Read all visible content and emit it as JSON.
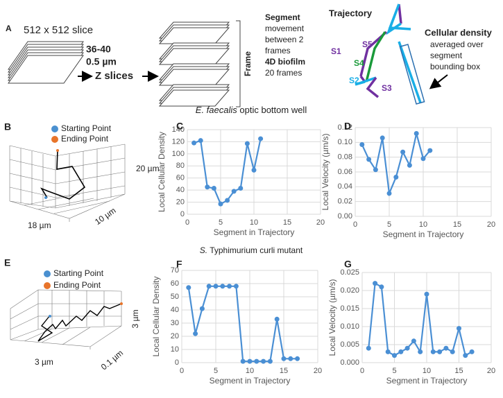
{
  "panel_a": {
    "letter": "A",
    "slice": "512 x 512 slice",
    "count": "36-40",
    "thickness": "0.5 µm",
    "z_slices": "Z slices",
    "frame": "Frame",
    "segment_title": "Segment",
    "segment_desc": [
      "movement",
      "between 2",
      "frames"
    ],
    "biofilm": "4D biofilm",
    "frames": "20 frames",
    "trajectory": "Trajectory",
    "segments": [
      "S1",
      "S2",
      "S3",
      "S4",
      "S5"
    ],
    "density_title": "Cellular density",
    "density_desc": [
      "averaged over",
      "segment",
      "bounding box"
    ]
  },
  "section_1": {
    "species": "E. faecalis",
    "rest": "optic bottom well"
  },
  "section_2": {
    "species": "S.",
    "rest": "Typhimurium  curli mutant"
  },
  "panel_b": {
    "letter": "B",
    "legend": [
      "Starting Point",
      "Ending Point"
    ],
    "axes": [
      "20 µm",
      "18 µm",
      "10 µm"
    ]
  },
  "panel_e": {
    "letter": "E",
    "legend": [
      "Starting Point",
      "Ending Point"
    ],
    "axes": [
      "3 µm",
      "3 µm",
      "0.1 µm"
    ]
  },
  "chart_data": [
    {
      "type": "line",
      "panel": "C",
      "x_label": "Segment in Trajectory",
      "y_label": "Local Cellular Density",
      "grid": true,
      "xlim": [
        0,
        20
      ],
      "xticks": [
        0,
        5,
        10,
        15,
        20
      ],
      "ylim": [
        0,
        140
      ],
      "yticks": [
        0,
        20,
        40,
        60,
        80,
        100,
        120,
        140
      ],
      "series": [
        {
          "color": "#4a8fd4",
          "x": [
            1,
            2,
            3,
            4,
            5,
            6,
            7,
            8,
            9,
            10,
            11
          ],
          "values": [
            118,
            122,
            45,
            43,
            17,
            23,
            38,
            43,
            117,
            73,
            125
          ]
        }
      ]
    },
    {
      "type": "line",
      "panel": "D",
      "x_label": "Segment in Trajectory",
      "y_label": "Local Velocity (µm/s)",
      "grid": true,
      "xlim": [
        0,
        20
      ],
      "xticks": [
        0,
        5,
        10,
        15,
        20
      ],
      "ylim": [
        0,
        0.12
      ],
      "yticks": [
        {
          "value": 0,
          "label": "0.00"
        },
        {
          "value": 0.02,
          "label": "0.02"
        },
        {
          "value": 0.04,
          "label": "0.04"
        },
        {
          "value": 0.06,
          "label": "0.06"
        },
        {
          "value": 0.08,
          "label": "0.08"
        },
        {
          "value": 0.1,
          "label": "0.10"
        },
        {
          "value": 0.12,
          "label": "0.12"
        }
      ],
      "series": [
        {
          "color": "#4a8fd4",
          "x": [
            1,
            2,
            3,
            4,
            5,
            6,
            7,
            8,
            9,
            10,
            11
          ],
          "values": [
            0.097,
            0.077,
            0.063,
            0.106,
            0.031,
            0.053,
            0.087,
            0.069,
            0.112,
            0.078,
            0.089
          ]
        }
      ]
    },
    {
      "type": "line",
      "panel": "F",
      "x_label": "Segment in Trajectory",
      "y_label": "Local Cellular Density",
      "grid": true,
      "xlim": [
        0,
        20
      ],
      "xticks": [
        0,
        5,
        10,
        15,
        20
      ],
      "ylim": [
        0,
        70
      ],
      "yticks": [
        0,
        10,
        20,
        30,
        40,
        50,
        60,
        70
      ],
      "series": [
        {
          "color": "#4a8fd4",
          "x": [
            1,
            2,
            3,
            4,
            5,
            6,
            7,
            8,
            9,
            10,
            11,
            12,
            13,
            14,
            15,
            16,
            17
          ],
          "values": [
            57,
            22,
            41,
            58,
            58,
            58,
            58,
            58,
            1,
            1,
            1,
            1,
            1,
            33,
            3,
            3,
            3
          ]
        }
      ]
    },
    {
      "type": "line",
      "panel": "G",
      "x_label": "Segment in Trajectory",
      "y_label": "Local Velocity (µm/s)",
      "grid": true,
      "xlim": [
        0,
        20
      ],
      "xticks": [
        0,
        5,
        10,
        15,
        20
      ],
      "ylim": [
        0,
        0.025
      ],
      "yticks": [
        {
          "value": 0,
          "label": "0.000"
        },
        {
          "value": 0.005,
          "label": "0.005"
        },
        {
          "value": 0.01,
          "label": "0.010"
        },
        {
          "value": 0.015,
          "label": "0.015"
        },
        {
          "value": 0.02,
          "label": "0.020"
        },
        {
          "value": 0.025,
          "label": "0.025"
        }
      ],
      "series": [
        {
          "color": "#4a8fd4",
          "x": [
            1,
            2,
            3,
            4,
            5,
            6,
            7,
            8,
            9,
            10,
            11,
            12,
            13,
            14,
            15,
            16,
            17
          ],
          "values": [
            0.004,
            0.022,
            0.021,
            0.003,
            0.002,
            0.003,
            0.004,
            0.006,
            0.003,
            0.019,
            0.003,
            0.003,
            0.004,
            0.003,
            0.0095,
            0.002,
            0.003
          ]
        }
      ]
    }
  ]
}
